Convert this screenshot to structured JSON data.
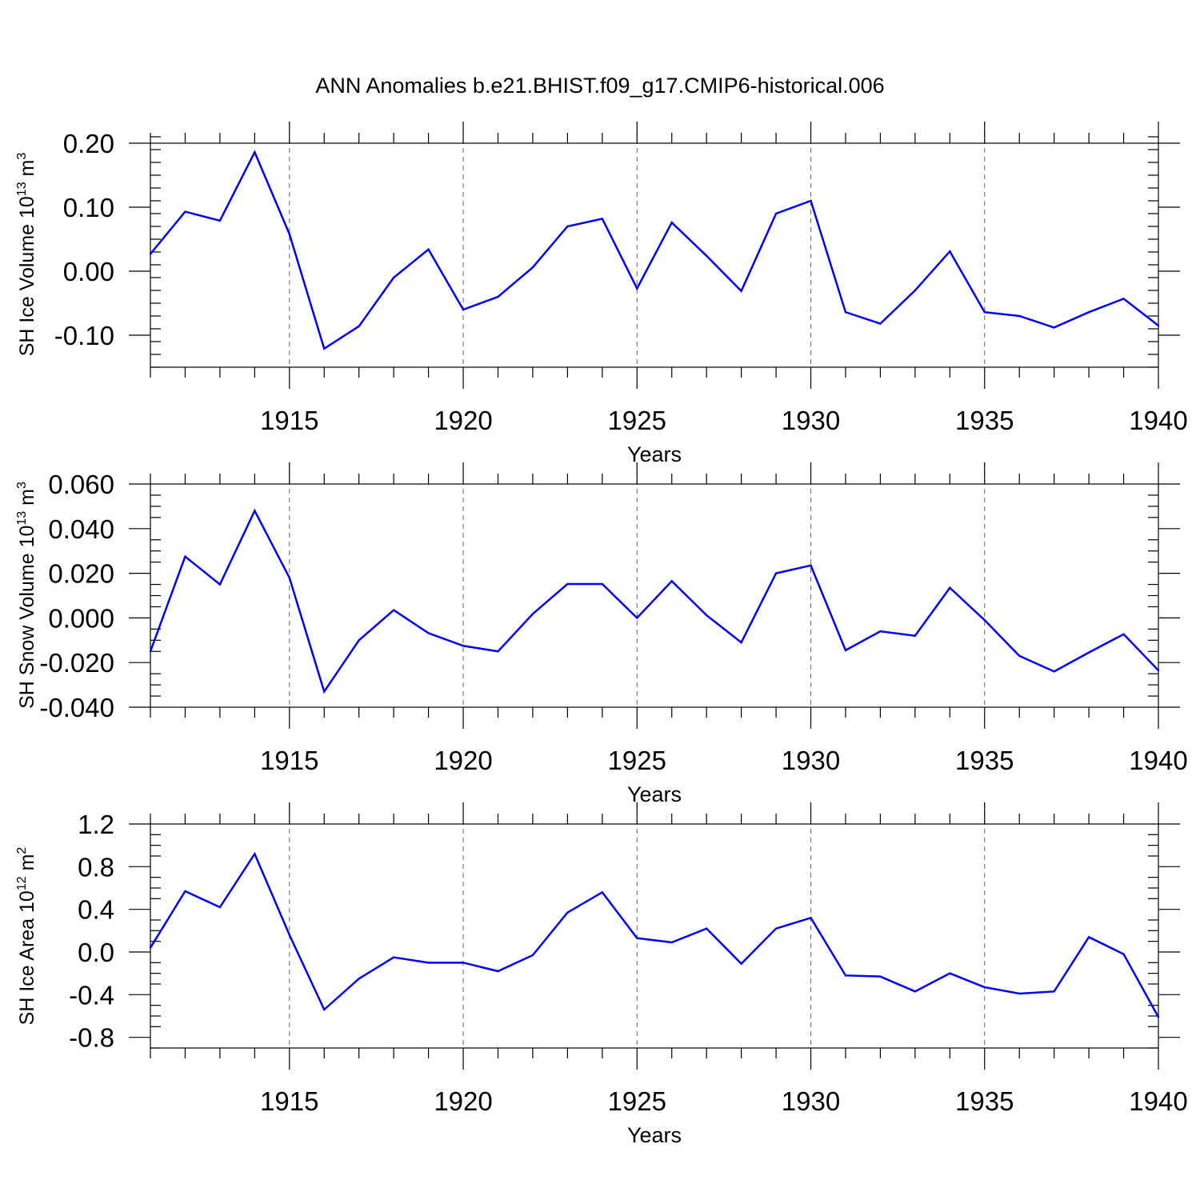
{
  "title": "ANN Anomalies b.e21.BHIST.f09_g17.CMIP6-historical.006",
  "colors": {
    "series": "#0000ff",
    "axes": "#000000"
  },
  "chart_data": [
    {
      "type": "line",
      "xlabel": "Years",
      "ylabel": {
        "text": "SH Ice Volume 10",
        "exp": "13",
        "unit": "m",
        "unit_exp": "3"
      },
      "xlim": [
        1911,
        1940
      ],
      "ylim": [
        -0.15,
        0.2
      ],
      "x_major_ticks": [
        1915,
        1920,
        1925,
        1930,
        1935,
        1940
      ],
      "x_tick_labels": [
        "1915",
        "1920",
        "1925",
        "1930",
        "1935",
        "1940"
      ],
      "y_major_ticks": [
        -0.1,
        0.0,
        0.1,
        0.2
      ],
      "y_tick_labels": [
        "-0.10",
        "0.00",
        "0.10",
        "0.20"
      ],
      "y_minor_step": 0.02,
      "grid": "dashed vertical lines at major x ticks",
      "x": [
        1911,
        1912,
        1913,
        1914,
        1915,
        1916,
        1917,
        1918,
        1919,
        1920,
        1921,
        1922,
        1923,
        1924,
        1925,
        1926,
        1927,
        1928,
        1929,
        1930,
        1931,
        1932,
        1933,
        1934,
        1935,
        1936,
        1937,
        1938,
        1939,
        1940
      ],
      "series": [
        {
          "values": [
            0.027,
            0.093,
            0.079,
            0.186,
            0.058,
            -0.121,
            -0.086,
            -0.01,
            0.034,
            -0.06,
            -0.04,
            0.006,
            0.07,
            0.082,
            -0.027,
            0.076,
            0.024,
            -0.031,
            0.09,
            0.11,
            -0.064,
            -0.082,
            -0.03,
            0.031,
            -0.064,
            -0.07,
            -0.088,
            -0.064,
            -0.043,
            -0.085
          ]
        }
      ]
    },
    {
      "type": "line",
      "xlabel": "Years",
      "ylabel": {
        "text": "SH Snow Volume 10",
        "exp": "13",
        "unit": "m",
        "unit_exp": "3"
      },
      "xlim": [
        1911,
        1940
      ],
      "ylim": [
        -0.04,
        0.06
      ],
      "x_major_ticks": [
        1915,
        1920,
        1925,
        1930,
        1935,
        1940
      ],
      "x_tick_labels": [
        "1915",
        "1920",
        "1925",
        "1930",
        "1935",
        "1940"
      ],
      "y_major_ticks": [
        -0.04,
        -0.02,
        0.0,
        0.02,
        0.04,
        0.06
      ],
      "y_tick_labels": [
        "-0.040",
        "-0.020",
        "0.000",
        "0.020",
        "0.040",
        "0.060"
      ],
      "y_minor_step": 0.005,
      "grid": "dashed vertical lines at major x ticks",
      "x": [
        1911,
        1912,
        1913,
        1914,
        1915,
        1916,
        1917,
        1918,
        1919,
        1920,
        1921,
        1922,
        1923,
        1924,
        1925,
        1926,
        1927,
        1928,
        1929,
        1930,
        1931,
        1932,
        1933,
        1934,
        1935,
        1936,
        1937,
        1938,
        1939,
        1940
      ],
      "series": [
        {
          "values": [
            -0.015,
            0.0275,
            0.015,
            0.048,
            0.018,
            -0.033,
            -0.01,
            0.0035,
            -0.0068,
            -0.0125,
            -0.015,
            0.0018,
            0.0152,
            0.0152,
            0.0,
            0.0165,
            0.0012,
            -0.011,
            0.02,
            0.0235,
            -0.0145,
            -0.006,
            -0.008,
            0.0135,
            -0.001,
            -0.017,
            -0.024,
            -0.0155,
            -0.0073,
            -0.0235
          ]
        }
      ]
    },
    {
      "type": "line",
      "xlabel": "Years",
      "ylabel": {
        "text": "SH Ice Area 10",
        "exp": "12",
        "unit": "m",
        "unit_exp": "2"
      },
      "xlim": [
        1911,
        1940
      ],
      "ylim": [
        -0.9,
        1.2
      ],
      "x_major_ticks": [
        1915,
        1920,
        1925,
        1930,
        1935,
        1940
      ],
      "x_tick_labels": [
        "1915",
        "1920",
        "1925",
        "1930",
        "1935",
        "1940"
      ],
      "y_major_ticks": [
        -0.8,
        -0.4,
        0.0,
        0.4,
        0.8,
        1.2
      ],
      "y_tick_labels": [
        "-0.8",
        "-0.4",
        "0.0",
        "0.4",
        "0.8",
        "1.2"
      ],
      "y_minor_step": 0.1,
      "grid": "dashed vertical lines at major x ticks",
      "x": [
        1911,
        1912,
        1913,
        1914,
        1915,
        1916,
        1917,
        1918,
        1919,
        1920,
        1921,
        1922,
        1923,
        1924,
        1925,
        1926,
        1927,
        1928,
        1929,
        1930,
        1931,
        1932,
        1933,
        1934,
        1935,
        1936,
        1937,
        1938,
        1939,
        1940
      ],
      "series": [
        {
          "values": [
            0.04,
            0.57,
            0.42,
            0.92,
            0.16,
            -0.54,
            -0.25,
            -0.05,
            -0.1,
            -0.1,
            -0.18,
            -0.03,
            0.37,
            0.56,
            0.13,
            0.09,
            0.22,
            -0.11,
            0.22,
            0.32,
            -0.22,
            -0.23,
            -0.37,
            -0.2,
            -0.33,
            -0.39,
            -0.37,
            0.14,
            -0.02,
            -0.61
          ]
        }
      ]
    }
  ]
}
